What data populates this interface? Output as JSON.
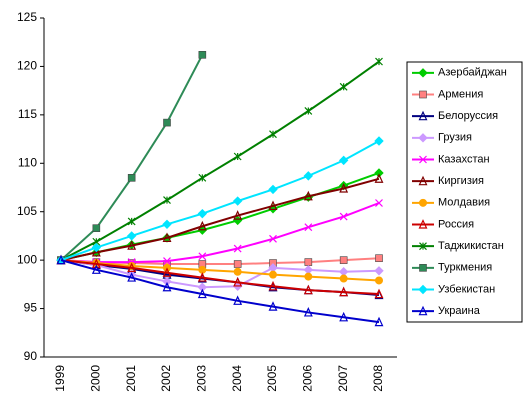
{
  "chart_data": {
    "type": "line",
    "x": [
      "1999",
      "2000",
      "2001",
      "2002",
      "2003",
      "2004",
      "2005",
      "2006",
      "2007",
      "2008"
    ],
    "ylim": [
      90,
      125
    ],
    "yticks": [
      90,
      95,
      100,
      105,
      110,
      115,
      120,
      125
    ],
    "grid": false,
    "legend": "right",
    "series": [
      {
        "name": "Азербайджан",
        "color": "#00cc00",
        "marker": "diamond",
        "values": [
          100,
          100.8,
          101.6,
          102.3,
          103.1,
          104.1,
          105.3,
          106.5,
          107.7,
          109
        ]
      },
      {
        "name": "Армения",
        "color": "#ff8080",
        "marker": "square",
        "values": [
          100,
          99.8,
          99.7,
          99.6,
          99.6,
          99.6,
          99.7,
          99.8,
          100,
          100.2
        ]
      },
      {
        "name": "Белоруссия",
        "color": "#000080",
        "marker": "triangle",
        "values": [
          100,
          99.5,
          99.1,
          98.5,
          98.1,
          97.7,
          97.2,
          96.9,
          96.7,
          96.4
        ]
      },
      {
        "name": "Грузия",
        "color": "#cc99ff",
        "marker": "diamond",
        "values": [
          100,
          99.5,
          98.5,
          97.8,
          97.2,
          97.3,
          99.2,
          99,
          98.8,
          98.9
        ]
      },
      {
        "name": "Казахстан",
        "color": "#ff00ff",
        "marker": "x",
        "values": [
          100,
          99.8,
          99.8,
          99.9,
          100.4,
          101.2,
          102.2,
          103.4,
          104.5,
          105.9
        ]
      },
      {
        "name": "Киргизия",
        "color": "#800000",
        "marker": "triangle",
        "values": [
          100,
          100.8,
          101.5,
          102.3,
          103.5,
          104.6,
          105.6,
          106.6,
          107.4,
          108.4
        ]
      },
      {
        "name": "Молдавия",
        "color": "#ffa500",
        "marker": "circle",
        "values": [
          100,
          99.7,
          99.4,
          99.2,
          99,
          98.8,
          98.5,
          98.3,
          98.1,
          97.9
        ]
      },
      {
        "name": "Россия",
        "color": "#cc0000",
        "marker": "triangle",
        "values": [
          100,
          99.6,
          99.2,
          98.7,
          98.2,
          97.7,
          97.3,
          96.9,
          96.7,
          96.5
        ]
      },
      {
        "name": "Таджикистан",
        "color": "#008000",
        "marker": "star",
        "values": [
          100,
          101.9,
          104,
          106.2,
          108.5,
          110.7,
          113,
          115.4,
          117.9,
          120.5
        ]
      },
      {
        "name": "Туркмения",
        "color": "#2e8b57",
        "marker": "square",
        "values": [
          100,
          103.3,
          108.5,
          114.2,
          121.2,
          null,
          null,
          null,
          null,
          null
        ]
      },
      {
        "name": "Узбекистан",
        "color": "#00e5ff",
        "marker": "diamond",
        "values": [
          100,
          101.3,
          102.5,
          103.7,
          104.8,
          106.1,
          107.3,
          108.7,
          110.3,
          112.3
        ]
      },
      {
        "name": "Украина",
        "color": "#0000cc",
        "marker": "triangle",
        "values": [
          100,
          99,
          98.2,
          97.2,
          96.5,
          95.8,
          95.2,
          94.6,
          94.1,
          93.6
        ]
      }
    ]
  }
}
